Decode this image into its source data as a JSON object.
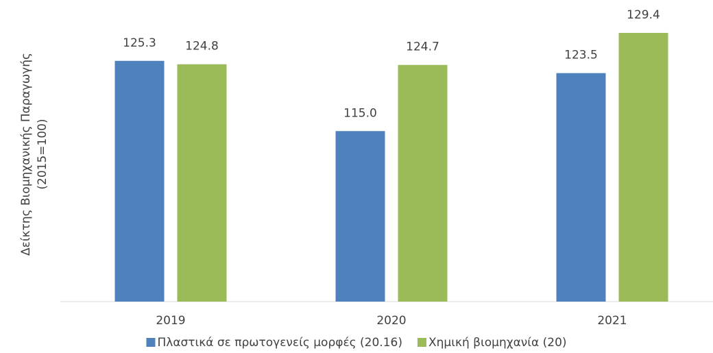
{
  "chart_data": {
    "type": "bar",
    "ylabel": [
      "Δείκτης Βιομηχανικής Παραγωγής",
      "(2015=100)"
    ],
    "categories": [
      "2019",
      "2020",
      "2021"
    ],
    "series": [
      {
        "name": "Πλαστικά σε πρωτογενείς μορφές (20.16)",
        "color": "#4f81bd",
        "values": [
          125.3,
          115.0,
          123.5
        ],
        "value_labels": [
          "125.3",
          "115.0",
          "123.5"
        ]
      },
      {
        "name": "Χημική βιομηχανία (20)",
        "color": "#9bbb59",
        "values": [
          124.8,
          124.7,
          129.4
        ],
        "value_labels": [
          "124.8",
          "124.7",
          "129.4"
        ]
      }
    ],
    "ylim": [
      90,
      130
    ],
    "legend": "bottom"
  }
}
